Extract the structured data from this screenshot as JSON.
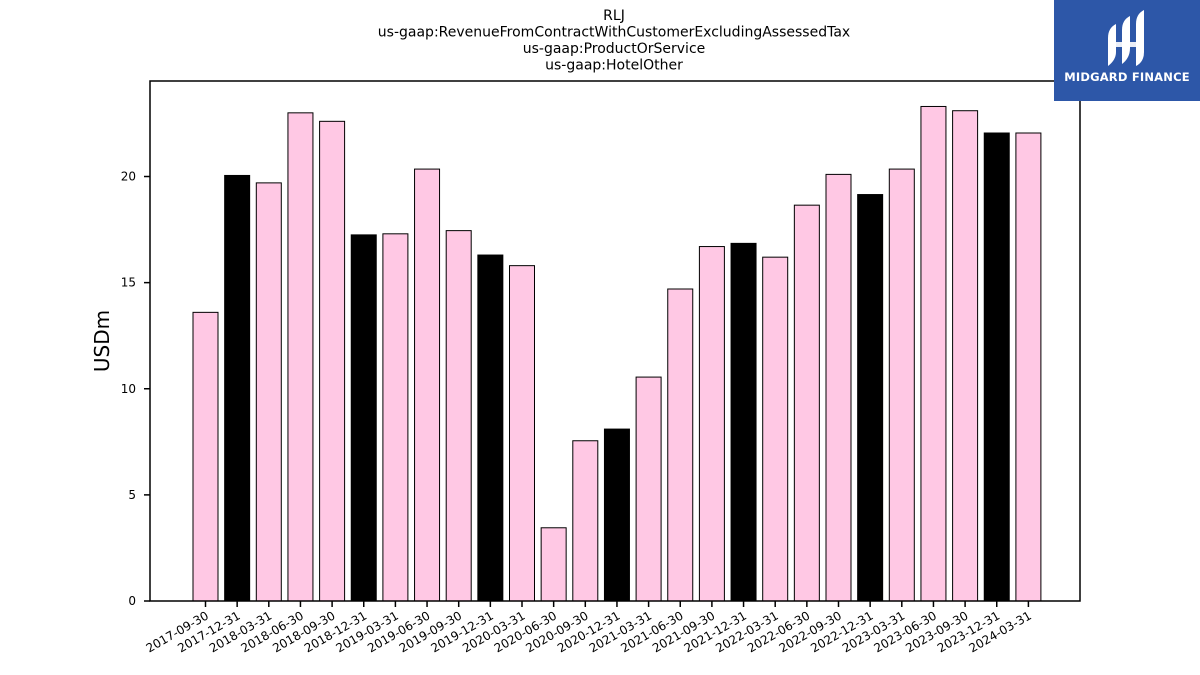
{
  "chart_data": {
    "type": "bar",
    "title_lines": [
      "RLJ",
      "us-gaap:RevenueFromContractWithCustomerExcludingAssessedTax",
      "us-gaap:ProductOrService",
      "us-gaap:HotelOther"
    ],
    "xlabel": "",
    "ylabel": "USDm",
    "ylim": [
      0,
      24.5
    ],
    "yticks": [
      0,
      5,
      10,
      15,
      20
    ],
    "grid": false,
    "categories": [
      "2017-09-30",
      "2017-12-31",
      "2018-03-31",
      "2018-06-30",
      "2018-09-30",
      "2018-12-31",
      "2019-03-31",
      "2019-06-30",
      "2019-09-30",
      "2019-12-31",
      "2020-03-31",
      "2020-06-30",
      "2020-09-30",
      "2020-12-31",
      "2021-03-31",
      "2021-06-30",
      "2021-09-30",
      "2021-12-31",
      "2022-03-31",
      "2022-06-30",
      "2022-09-30",
      "2022-12-31",
      "2023-03-31",
      "2023-06-30",
      "2023-09-30",
      "2023-12-31",
      "2024-03-31"
    ],
    "values": [
      13.6,
      20.05,
      19.7,
      23.0,
      22.6,
      17.25,
      17.3,
      20.35,
      17.45,
      16.3,
      15.8,
      3.45,
      7.55,
      8.1,
      10.55,
      14.7,
      16.7,
      16.85,
      16.2,
      18.65,
      20.1,
      19.15,
      20.35,
      23.3,
      23.1,
      22.05,
      22.05
    ],
    "colors": {
      "quarter": "#ffc8e4",
      "year_end": "#000000",
      "edge": "#000000"
    }
  },
  "logo": {
    "text": "MIDGARD FINANCE",
    "background": "#2d57a8"
  }
}
